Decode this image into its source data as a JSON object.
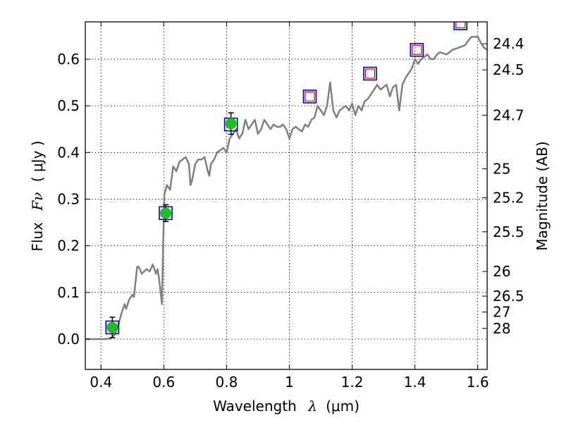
{
  "chart_data": {
    "type": "line",
    "xlabel_text": "Wavelength",
    "xlabel_symbol": "λ",
    "xlabel_unit": "(μm)",
    "ylabel_text": "Flux",
    "ylabel_symbol": "Fν",
    "ylabel_unit": "( μJy )",
    "y2label": "Magnitude (AB)",
    "xlim": [
      0.35,
      1.63
    ],
    "ylim": [
      -0.065,
      0.68
    ],
    "grid": true,
    "x_ticks": [
      {
        "value": 0.4,
        "label": "0.4"
      },
      {
        "value": 0.6,
        "label": "0.6"
      },
      {
        "value": 0.8,
        "label": "0.8"
      },
      {
        "value": 1.0,
        "label": "1"
      },
      {
        "value": 1.2,
        "label": "1.2"
      },
      {
        "value": 1.4,
        "label": "1.4"
      },
      {
        "value": 1.6,
        "label": "1.6"
      }
    ],
    "y_ticks": [
      {
        "value": 0.0,
        "label": "0.0"
      },
      {
        "value": 0.1,
        "label": "0.1"
      },
      {
        "value": 0.2,
        "label": "0.2"
      },
      {
        "value": 0.3,
        "label": "0.3"
      },
      {
        "value": 0.4,
        "label": "0.4"
      },
      {
        "value": 0.5,
        "label": "0.5"
      },
      {
        "value": 0.6,
        "label": "0.6"
      }
    ],
    "y2_ticks": [
      {
        "label": "24.4",
        "flux": 0.633
      },
      {
        "label": "24.5",
        "flux": 0.577
      },
      {
        "label": "24.7",
        "flux": 0.48
      },
      {
        "label": "25",
        "flux": 0.365
      },
      {
        "label": "25.2",
        "flux": 0.303
      },
      {
        "label": "25.5",
        "flux": 0.23
      },
      {
        "label": "26",
        "flux": 0.145
      },
      {
        "label": "26.5",
        "flux": 0.092
      },
      {
        "label": "27",
        "flux": 0.058
      },
      {
        "label": "28",
        "flux": 0.023
      }
    ],
    "series": [
      {
        "kind": "spectrum",
        "color": "#808080",
        "points": [
          [
            0.35,
            0.0
          ],
          [
            0.39,
            0.0
          ],
          [
            0.41,
            0.0
          ],
          [
            0.43,
            0.001
          ],
          [
            0.445,
            0.01
          ],
          [
            0.455,
            0.03
          ],
          [
            0.465,
            0.055
          ],
          [
            0.475,
            0.075
          ],
          [
            0.48,
            0.065
          ],
          [
            0.49,
            0.085
          ],
          [
            0.5,
            0.095
          ],
          [
            0.505,
            0.09
          ],
          [
            0.515,
            0.155
          ],
          [
            0.52,
            0.155
          ],
          [
            0.53,
            0.14
          ],
          [
            0.545,
            0.15
          ],
          [
            0.555,
            0.145
          ],
          [
            0.565,
            0.16
          ],
          [
            0.575,
            0.14
          ],
          [
            0.58,
            0.15
          ],
          [
            0.585,
            0.13
          ],
          [
            0.59,
            0.1
          ],
          [
            0.594,
            0.075
          ],
          [
            0.598,
            0.2
          ],
          [
            0.602,
            0.31
          ],
          [
            0.61,
            0.33
          ],
          [
            0.62,
            0.32
          ],
          [
            0.63,
            0.37
          ],
          [
            0.64,
            0.36
          ],
          [
            0.65,
            0.38
          ],
          [
            0.66,
            0.385
          ],
          [
            0.67,
            0.39
          ],
          [
            0.68,
            0.375
          ],
          [
            0.685,
            0.33
          ],
          [
            0.69,
            0.34
          ],
          [
            0.7,
            0.375
          ],
          [
            0.71,
            0.385
          ],
          [
            0.72,
            0.385
          ],
          [
            0.73,
            0.39
          ],
          [
            0.74,
            0.36
          ],
          [
            0.745,
            0.35
          ],
          [
            0.75,
            0.375
          ],
          [
            0.76,
            0.385
          ],
          [
            0.77,
            0.4
          ],
          [
            0.78,
            0.405
          ],
          [
            0.79,
            0.41
          ],
          [
            0.8,
            0.4
          ],
          [
            0.81,
            0.43
          ],
          [
            0.82,
            0.44
          ],
          [
            0.83,
            0.45
          ],
          [
            0.84,
            0.43
          ],
          [
            0.85,
            0.44
          ],
          [
            0.86,
            0.47
          ],
          [
            0.87,
            0.45
          ],
          [
            0.88,
            0.46
          ],
          [
            0.89,
            0.47
          ],
          [
            0.9,
            0.44
          ],
          [
            0.91,
            0.45
          ],
          [
            0.92,
            0.47
          ],
          [
            0.93,
            0.46
          ],
          [
            0.94,
            0.45
          ],
          [
            0.95,
            0.46
          ],
          [
            0.96,
            0.455
          ],
          [
            0.97,
            0.455
          ],
          [
            0.98,
            0.46
          ],
          [
            0.99,
            0.45
          ],
          [
            1.0,
            0.43
          ],
          [
            1.01,
            0.45
          ],
          [
            1.02,
            0.455
          ],
          [
            1.03,
            0.45
          ],
          [
            1.04,
            0.445
          ],
          [
            1.05,
            0.46
          ],
          [
            1.06,
            0.455
          ],
          [
            1.07,
            0.47
          ],
          [
            1.08,
            0.475
          ],
          [
            1.09,
            0.5
          ],
          [
            1.1,
            0.49
          ],
          [
            1.11,
            0.48
          ],
          [
            1.12,
            0.5
          ],
          [
            1.13,
            0.55
          ],
          [
            1.14,
            0.49
          ],
          [
            1.15,
            0.475
          ],
          [
            1.16,
            0.49
          ],
          [
            1.17,
            0.495
          ],
          [
            1.18,
            0.5
          ],
          [
            1.19,
            0.49
          ],
          [
            1.2,
            0.505
          ],
          [
            1.21,
            0.48
          ],
          [
            1.22,
            0.5
          ],
          [
            1.23,
            0.49
          ],
          [
            1.24,
            0.51
          ],
          [
            1.25,
            0.515
          ],
          [
            1.26,
            0.525
          ],
          [
            1.27,
            0.535
          ],
          [
            1.28,
            0.545
          ],
          [
            1.29,
            0.535
          ],
          [
            1.3,
            0.54
          ],
          [
            1.31,
            0.545
          ],
          [
            1.32,
            0.52
          ],
          [
            1.33,
            0.54
          ],
          [
            1.34,
            0.545
          ],
          [
            1.35,
            0.49
          ],
          [
            1.36,
            0.545
          ],
          [
            1.37,
            0.56
          ],
          [
            1.38,
            0.57
          ],
          [
            1.39,
            0.58
          ],
          [
            1.4,
            0.6
          ],
          [
            1.41,
            0.59
          ],
          [
            1.42,
            0.6
          ],
          [
            1.43,
            0.605
          ],
          [
            1.44,
            0.61
          ],
          [
            1.45,
            0.6
          ],
          [
            1.46,
            0.6
          ],
          [
            1.47,
            0.61
          ],
          [
            1.48,
            0.615
          ],
          [
            1.5,
            0.61
          ],
          [
            1.52,
            0.62
          ],
          [
            1.54,
            0.625
          ],
          [
            1.56,
            0.63
          ],
          [
            1.57,
            0.64
          ],
          [
            1.58,
            0.648
          ],
          [
            1.6,
            0.648
          ],
          [
            1.61,
            0.635
          ],
          [
            1.62,
            0.625
          ],
          [
            1.63,
            0.62
          ]
        ]
      },
      {
        "kind": "model-squares",
        "marker": "square",
        "stroke": "#0000cc",
        "fill": "none",
        "points": [
          [
            0.436,
            0.025
          ],
          [
            0.606,
            0.27
          ],
          [
            0.814,
            0.46
          ],
          [
            1.065,
            0.52
          ],
          [
            1.257,
            0.569
          ],
          [
            1.406,
            0.62
          ],
          [
            1.545,
            0.677
          ]
        ]
      },
      {
        "kind": "upper-limit-squares",
        "marker": "square",
        "stroke": "#dd0000",
        "fill": "none",
        "points": [
          [
            1.065,
            0.52
          ],
          [
            1.257,
            0.569
          ],
          [
            1.406,
            0.62
          ],
          [
            1.545,
            0.677
          ]
        ]
      },
      {
        "kind": "observed-detections",
        "marker": "circle",
        "fill": "#22bb22",
        "points": [
          {
            "x": 0.436,
            "y": 0.025,
            "err": 0.022
          },
          {
            "x": 0.606,
            "y": 0.27,
            "err": 0.018
          },
          {
            "x": 0.814,
            "y": 0.462,
            "err": 0.023
          }
        ]
      }
    ]
  }
}
